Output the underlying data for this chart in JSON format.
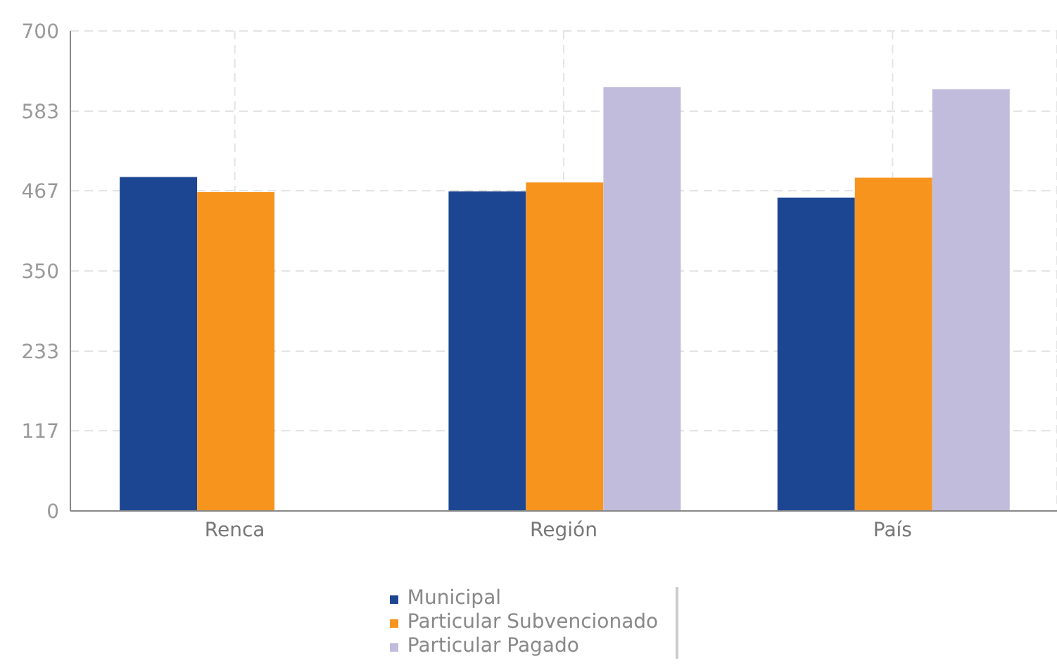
{
  "chart_data": {
    "type": "bar",
    "categories": [
      "Renca",
      "Región",
      "País"
    ],
    "series": [
      {
        "name": "Municipal",
        "color": "#1c4692",
        "values": [
          487,
          466,
          457
        ]
      },
      {
        "name": "Particular Subvencionado",
        "color": "#f7941e",
        "values": [
          465,
          479,
          486
        ]
      },
      {
        "name": "Particular Pagado",
        "color": "#c1bcdc",
        "values": [
          null,
          618,
          615
        ]
      }
    ],
    "ylim": [
      0,
      700
    ],
    "yticks": [
      0,
      117,
      233,
      350,
      467,
      583,
      700
    ],
    "grid": true,
    "legend": "bottom"
  }
}
